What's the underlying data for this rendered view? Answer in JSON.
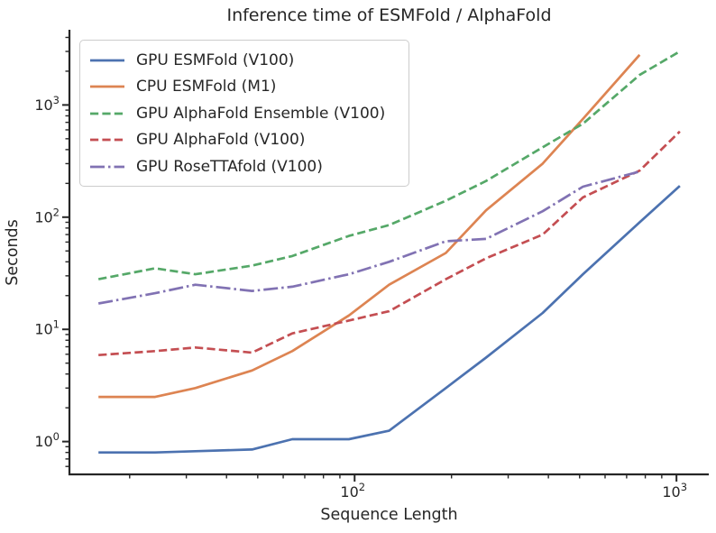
{
  "chart_data": {
    "type": "line",
    "title": "Inference time of ESMFold / AlphaFold",
    "xlabel": "Sequence Length",
    "ylabel": "Seconds",
    "xscale": "log",
    "yscale": "log",
    "xlim": [
      13,
      1260
    ],
    "ylim": [
      0.51,
      4680
    ],
    "grid": false,
    "legend_position": "upper left",
    "axis_color": "#262626",
    "x_major_ticks": [
      {
        "value": 100,
        "base": "10",
        "exponent": "2"
      },
      {
        "value": 1000,
        "base": "10",
        "exponent": "3"
      }
    ],
    "y_major_ticks": [
      {
        "value": 1,
        "base": "10",
        "exponent": "0"
      },
      {
        "value": 10,
        "base": "10",
        "exponent": "1"
      },
      {
        "value": 100,
        "base": "10",
        "exponent": "2"
      },
      {
        "value": 1000,
        "base": "10",
        "exponent": "3"
      }
    ],
    "x": [
      16,
      24,
      32,
      48,
      64,
      96,
      128,
      192,
      256,
      384,
      512,
      768,
      1024
    ],
    "series": [
      {
        "name": "GPU ESMFold (V100)",
        "color": "#4C72B0",
        "line_style": "solid",
        "values": [
          0.8,
          0.8,
          0.82,
          0.85,
          1.05,
          1.05,
          1.25,
          3.0,
          5.6,
          14,
          31,
          90,
          190
        ]
      },
      {
        "name": "CPU ESMFold (M1)",
        "color": "#DD8452",
        "line_style": "solid",
        "values": [
          2.5,
          2.5,
          3.0,
          4.3,
          6.4,
          13.3,
          25,
          48,
          115,
          300,
          750,
          2800,
          null
        ]
      },
      {
        "name": "GPU AlphaFold Ensemble (V100)",
        "color": "#55A868",
        "line_style": "dashed",
        "values": [
          28,
          35,
          31,
          37,
          45,
          68,
          85,
          140,
          210,
          420,
          680,
          1850,
          3000
        ]
      },
      {
        "name": "GPU AlphaFold (V100)",
        "color": "#C44E52",
        "line_style": "dashed",
        "values": [
          5.9,
          6.4,
          6.9,
          6.2,
          9.2,
          12,
          14.5,
          28,
          43,
          70,
          150,
          260,
          580
        ]
      },
      {
        "name": "GPU RoseTTAfold (V100)",
        "color": "#8172B3",
        "line_style": "dashdot",
        "values": [
          17,
          21,
          25,
          22,
          24,
          31,
          40,
          61,
          64,
          113,
          187,
          255,
          null
        ]
      }
    ]
  }
}
